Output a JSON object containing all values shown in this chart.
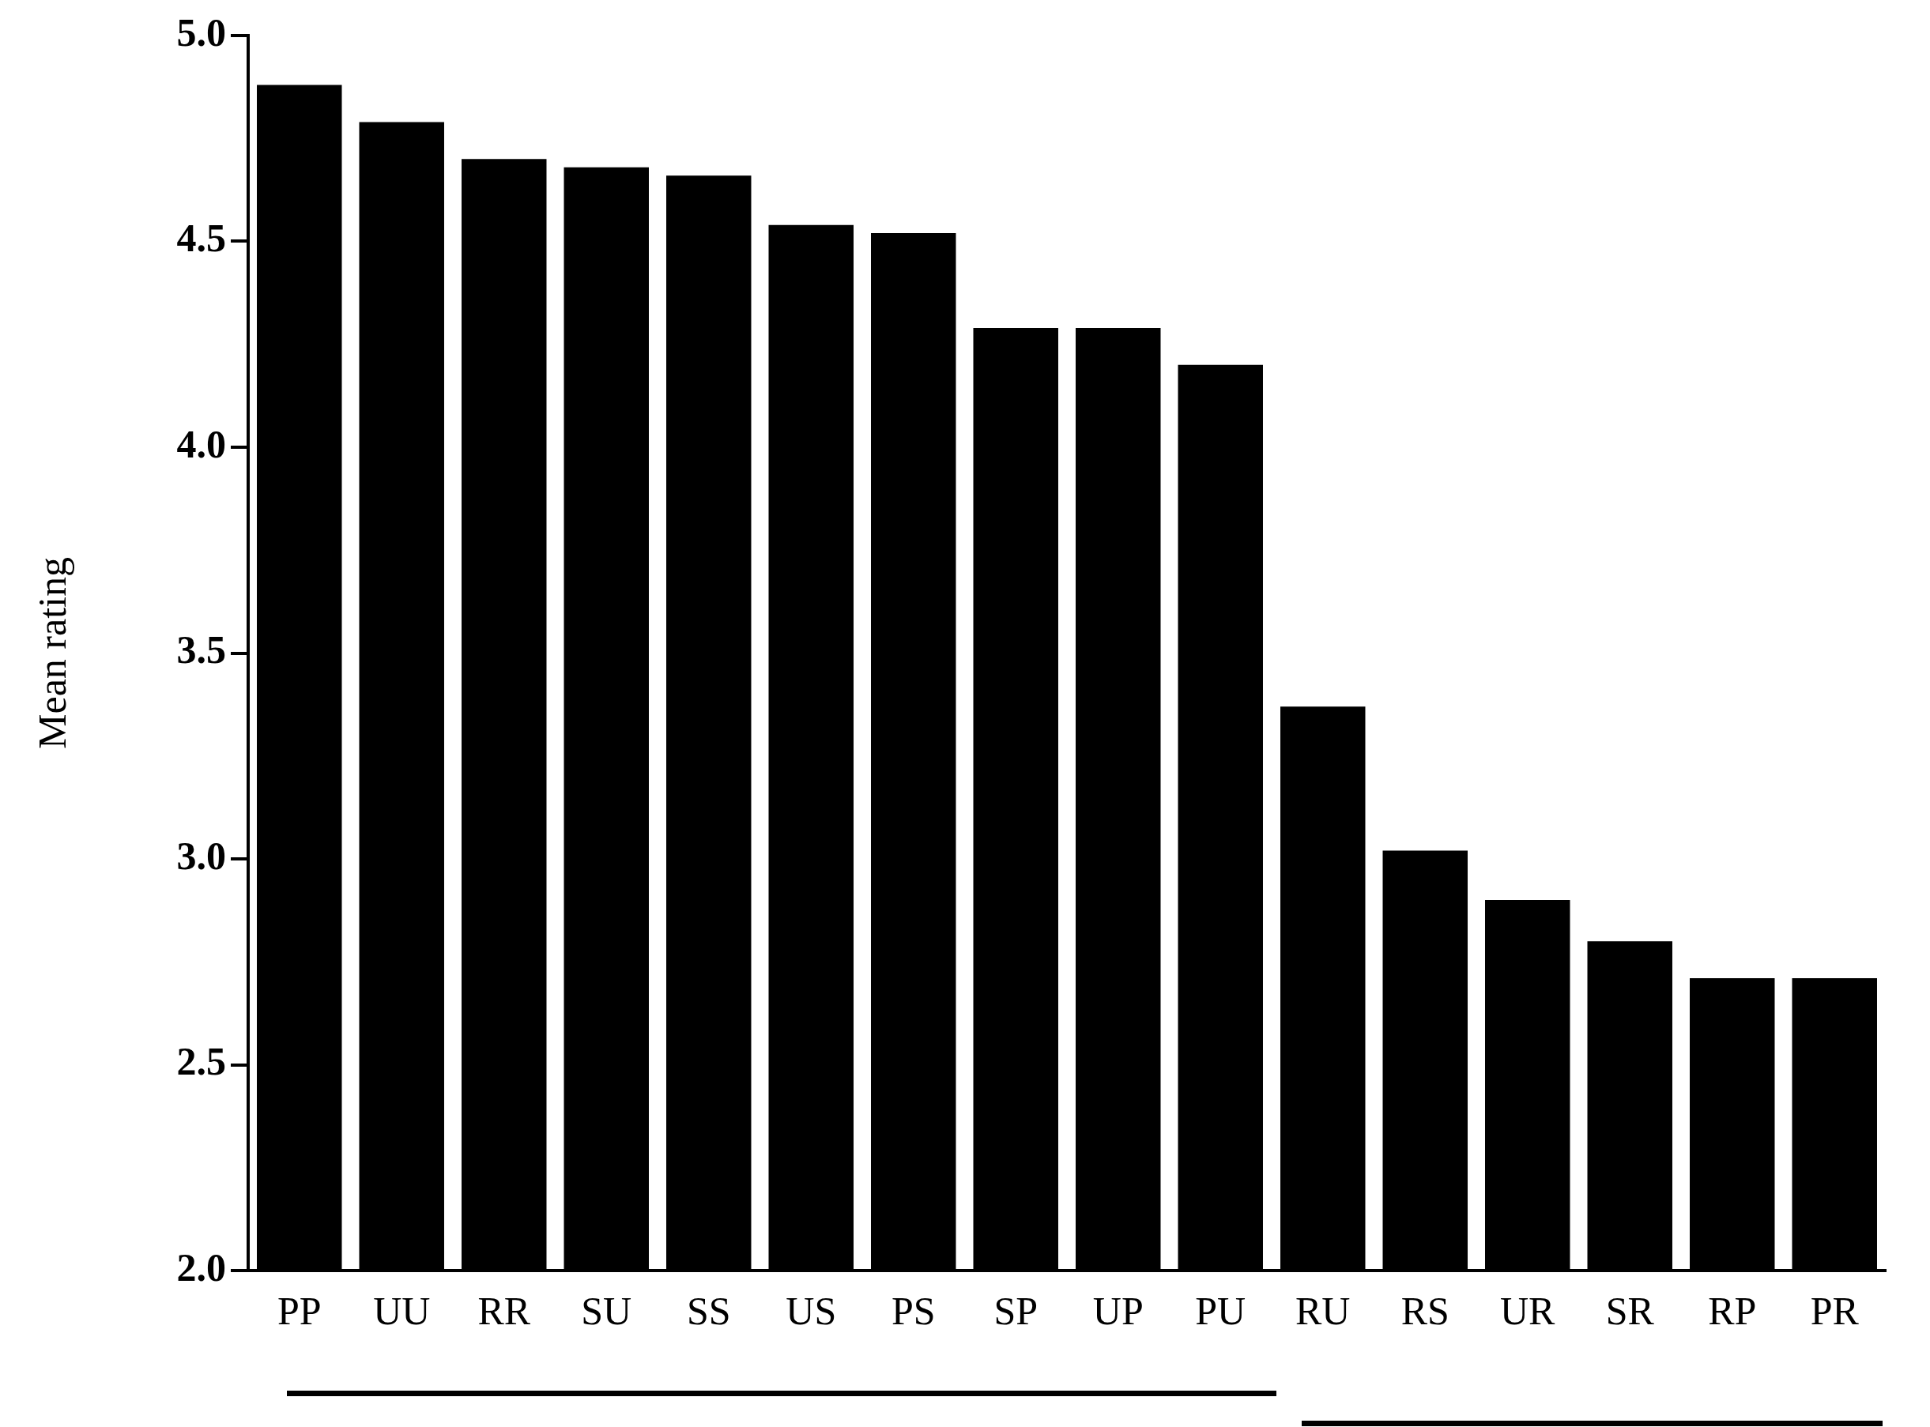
{
  "chart_data": {
    "type": "bar",
    "ylabel": "Mean rating",
    "categories": [
      "PP",
      "UU",
      "RR",
      "SU",
      "SS",
      "US",
      "PS",
      "SP",
      "UP",
      "PU",
      "RU",
      "RS",
      "UR",
      "SR",
      "RP",
      "PR"
    ],
    "values": [
      4.88,
      4.79,
      4.7,
      4.68,
      4.66,
      4.54,
      4.52,
      4.29,
      4.29,
      4.2,
      3.37,
      3.02,
      2.9,
      2.8,
      2.71,
      2.71
    ],
    "color": "#000000",
    "ylim": [
      2,
      5
    ],
    "yticks": [
      {
        "value": 2,
        "label": "2.0"
      },
      {
        "value": 2.5,
        "label": "2.5"
      },
      {
        "value": 3,
        "label": "3.0"
      },
      {
        "value": 3.5,
        "label": "3.5"
      },
      {
        "value": 4,
        "label": "4.0"
      },
      {
        "value": 4.5,
        "label": "4.5"
      },
      {
        "value": 5,
        "label": "5.0"
      }
    ],
    "grid": false,
    "legend": false
  }
}
